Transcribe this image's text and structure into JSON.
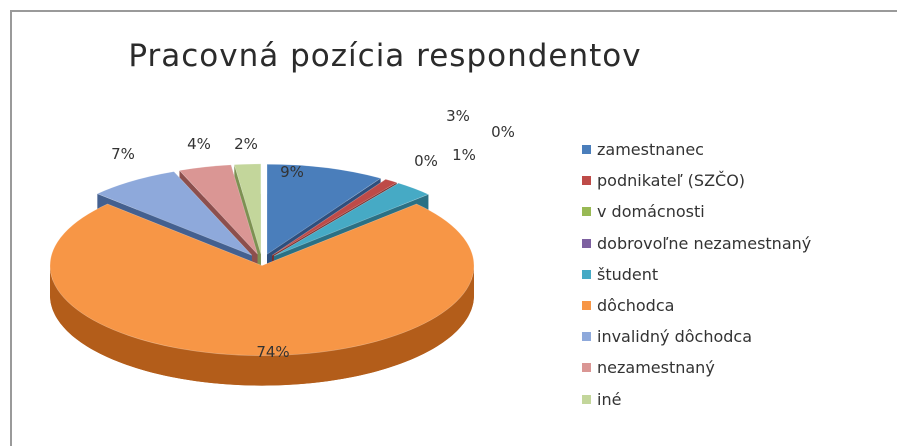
{
  "chart_data": {
    "type": "pie",
    "title": "Pracovná pozícia respondentov",
    "legend_position": "right",
    "three_d": true,
    "categories": [
      "zamestnanec",
      "podnikateľ (SZČO)",
      "v domácnosti",
      "dobrovoľne nezamestnaný",
      "študent",
      "dôchodca",
      "invalidný dôchodca",
      "nezamestnaný",
      "iné"
    ],
    "values": [
      9,
      1,
      0,
      0,
      3,
      74,
      7,
      4,
      2
    ],
    "data_labels": [
      "9%",
      "1%",
      "0%",
      "0%",
      "3%",
      "74%",
      "7%",
      "4%",
      "2%"
    ],
    "colors": [
      "#4a7ebb",
      "#be4b48",
      "#98b954",
      "#7d60a0",
      "#46aac5",
      "#f79646",
      "#8ea9db",
      "#da9694",
      "#c3d69b"
    ],
    "side_colors": [
      "#2e4f7d",
      "#7c2b29",
      "#5f7a30",
      "#4d3a67",
      "#2b7084",
      "#b35d1a",
      "#44608f",
      "#8c4f4d",
      "#7d9152"
    ]
  }
}
